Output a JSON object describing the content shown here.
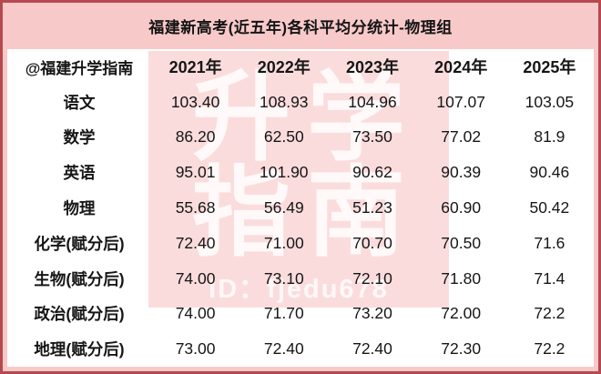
{
  "page": {
    "title": "福建新高考(近五年)各科平均分统计-物理组"
  },
  "table": {
    "corner_label": "@福建升学指南",
    "year_headers": [
      "2021年",
      "2022年",
      "2023年",
      "2024年",
      "2025年"
    ],
    "rows": [
      {
        "label": "语文",
        "values": [
          "103.40",
          "108.93",
          "104.96",
          "107.07",
          "103.05"
        ]
      },
      {
        "label": "数学",
        "values": [
          "86.20",
          "62.50",
          "73.50",
          "77.02",
          "81.9"
        ]
      },
      {
        "label": "英语",
        "values": [
          "95.01",
          "101.90",
          "90.62",
          "90.39",
          "90.46"
        ]
      },
      {
        "label": "物理",
        "values": [
          "55.68",
          "56.49",
          "51.23",
          "60.90",
          "50.42"
        ]
      },
      {
        "label": "化学(赋分后)",
        "values": [
          "72.40",
          "71.00",
          "70.70",
          "70.50",
          "71.6"
        ]
      },
      {
        "label": "生物(赋分后)",
        "values": [
          "74.00",
          "73.10",
          "72.10",
          "71.80",
          "71.4"
        ]
      },
      {
        "label": "政治(赋分后)",
        "values": [
          "74.00",
          "71.70",
          "73.20",
          "72.00",
          "72.2"
        ]
      },
      {
        "label": "地理(赋分后)",
        "values": [
          "73.00",
          "72.40",
          "72.40",
          "72.30",
          "72.2"
        ]
      }
    ]
  },
  "watermark": {
    "line1": "升学",
    "line2": "指南",
    "id_text": "ID：fjedu678"
  },
  "colors": {
    "frame_border_red": "#b6494f",
    "title_bar_pink": "#f8c9c9",
    "watermark_pink": "#fbdcdd",
    "table_background": "#ffffff",
    "text_black": "#161616",
    "watermark_text_white": "#ffffff"
  },
  "chart_data": {
    "type": "table",
    "title": "福建新高考(近五年)各科平均分统计-物理组",
    "source_label": "@福建升学指南",
    "categories": [
      "2021年",
      "2022年",
      "2023年",
      "2024年",
      "2025年"
    ],
    "series": [
      {
        "name": "语文",
        "values": [
          103.4,
          108.93,
          104.96,
          107.07,
          103.05
        ]
      },
      {
        "name": "数学",
        "values": [
          86.2,
          62.5,
          73.5,
          77.02,
          81.9
        ]
      },
      {
        "name": "英语",
        "values": [
          95.01,
          101.9,
          90.62,
          90.39,
          90.46
        ]
      },
      {
        "name": "物理",
        "values": [
          55.68,
          56.49,
          51.23,
          60.9,
          50.42
        ]
      },
      {
        "name": "化学(赋分后)",
        "values": [
          72.4,
          71.0,
          70.7,
          70.5,
          71.6
        ]
      },
      {
        "name": "生物(赋分后)",
        "values": [
          74.0,
          73.1,
          72.1,
          71.8,
          71.4
        ]
      },
      {
        "name": "政治(赋分后)",
        "values": [
          74.0,
          71.7,
          73.2,
          72.0,
          72.2
        ]
      },
      {
        "name": "地理(赋分后)",
        "values": [
          73.0,
          72.4,
          72.4,
          72.3,
          72.2
        ]
      }
    ]
  }
}
